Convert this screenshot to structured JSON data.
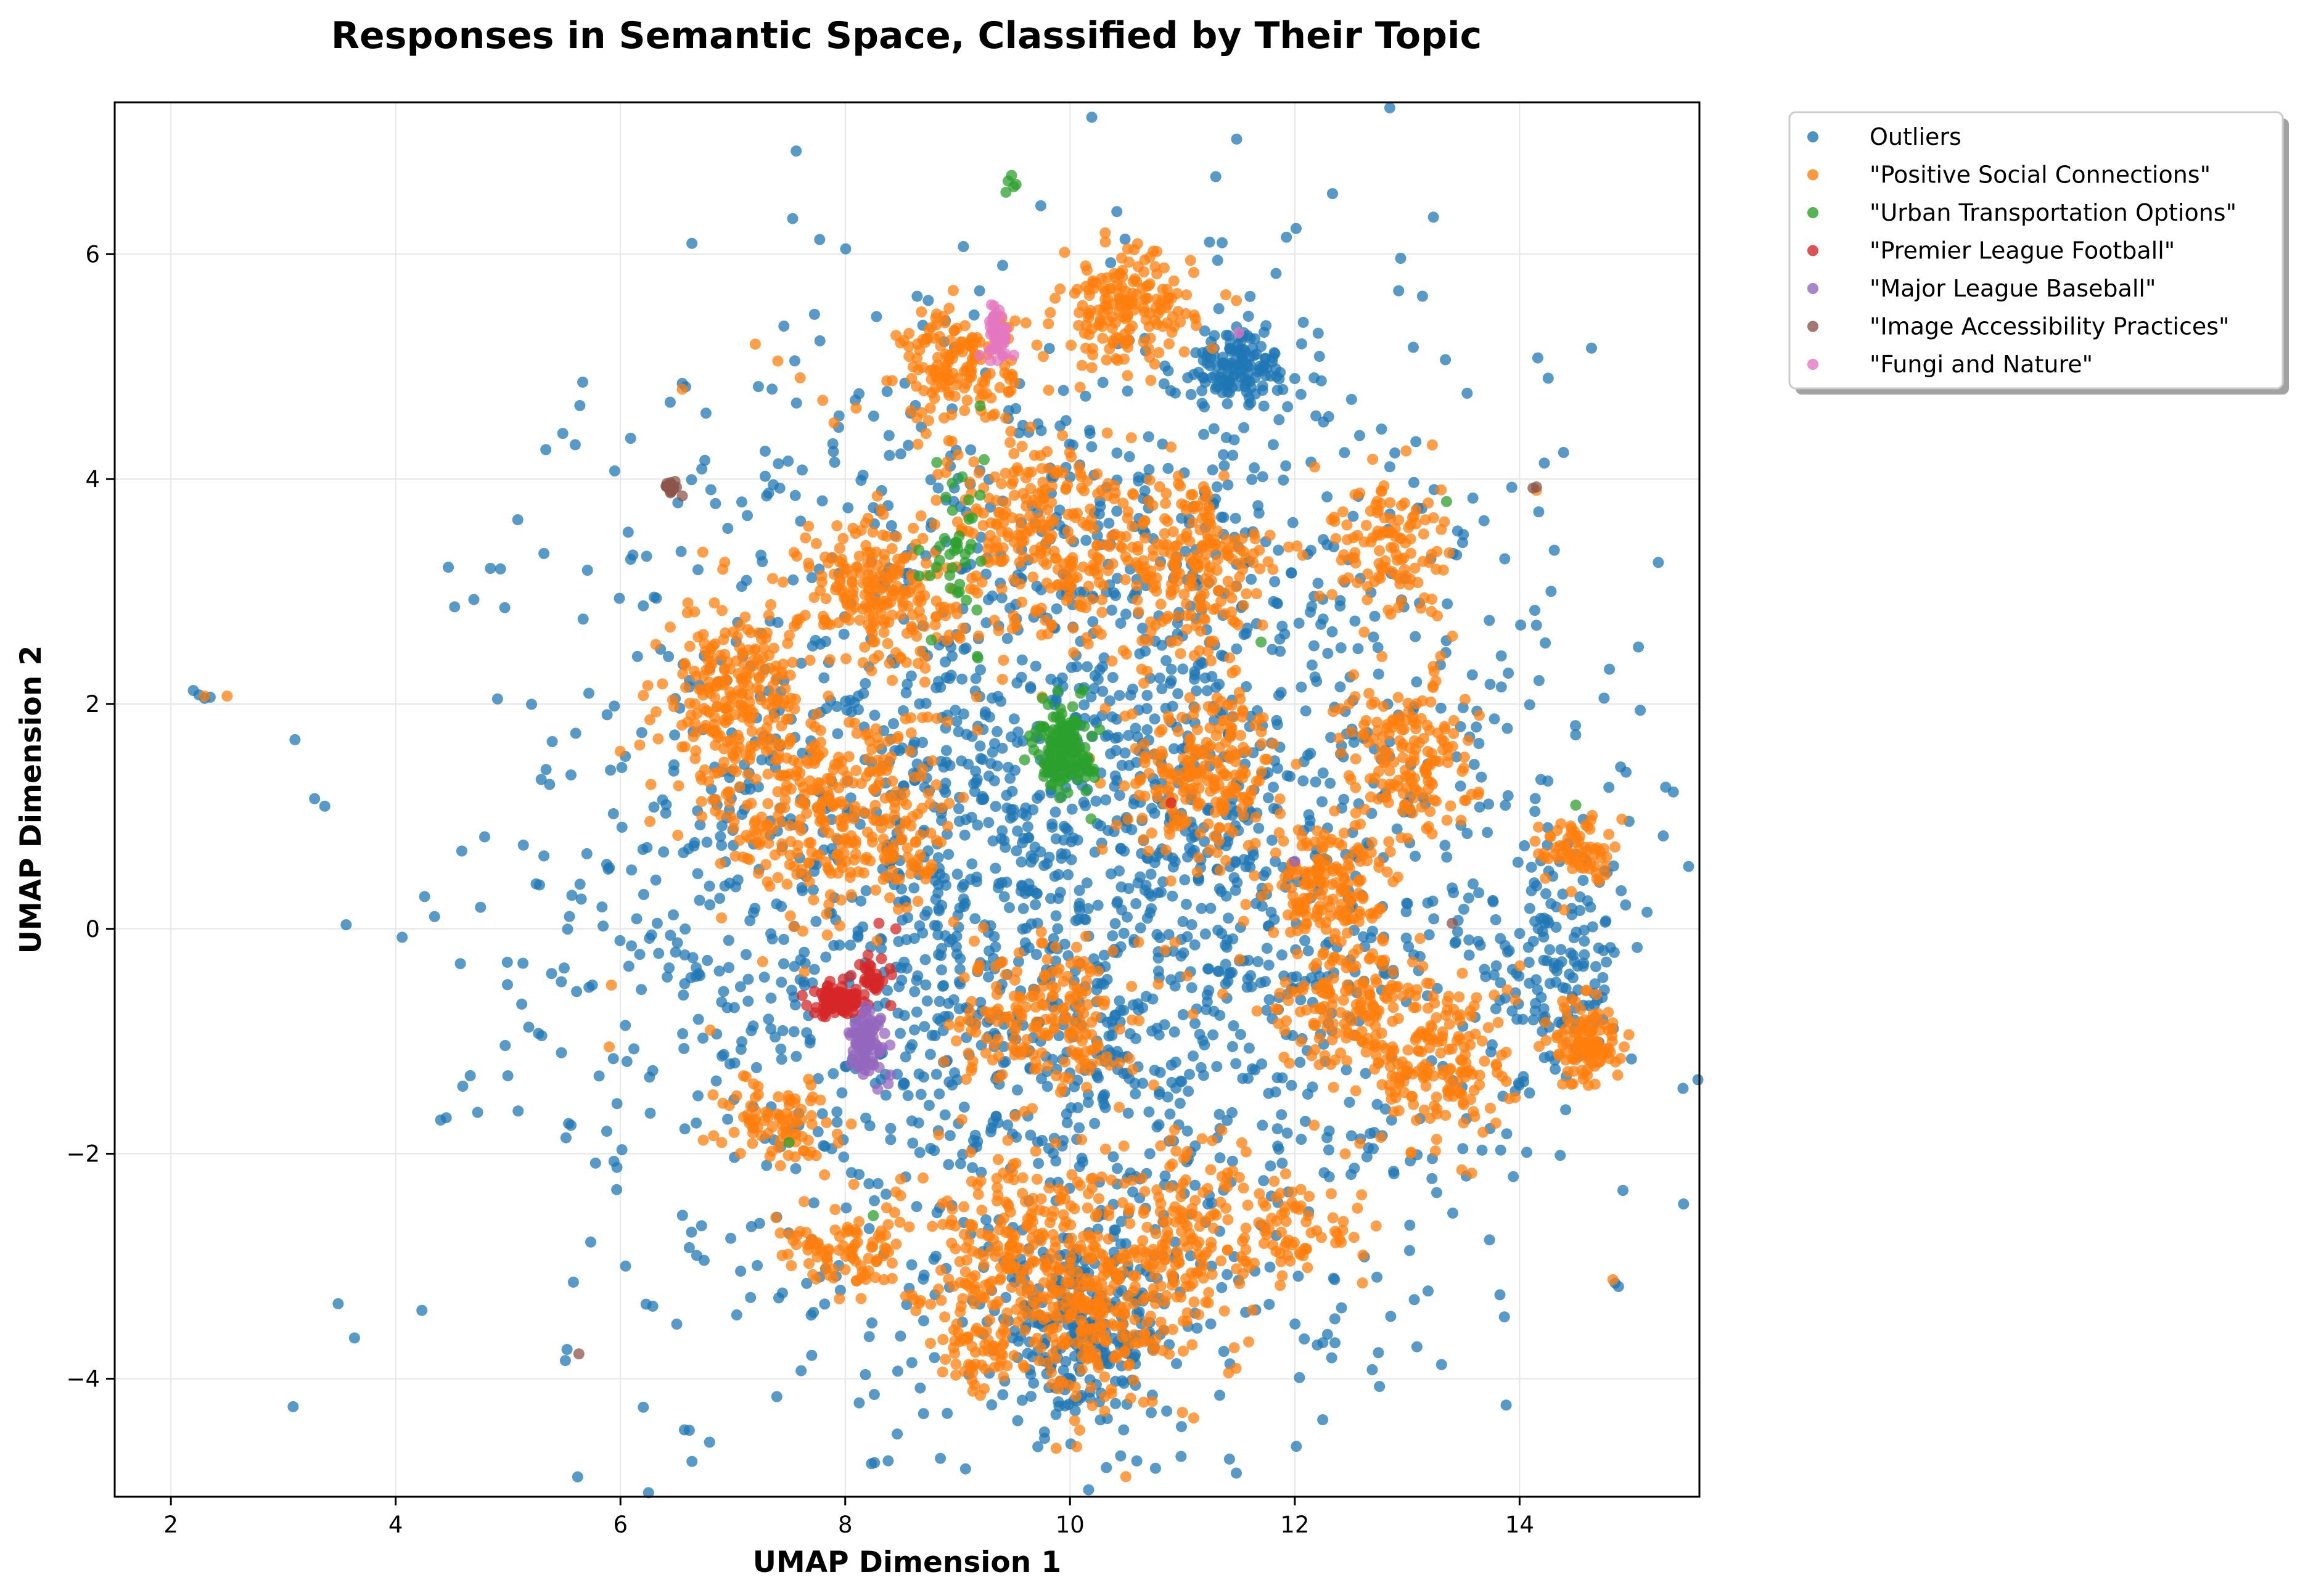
{
  "chart_data": {
    "type": "scatter",
    "title": "Responses in Semantic Space, Classified by Their Topic",
    "xlabel": "UMAP Dimension 1",
    "ylabel": "UMAP Dimension 2",
    "xlim": [
      1.5,
      15.6
    ],
    "ylim": [
      -5.05,
      7.35
    ],
    "xticks": [
      2,
      4,
      6,
      8,
      10,
      12,
      14
    ],
    "yticks": [
      -4,
      -2,
      0,
      2,
      4,
      6
    ],
    "xtick_labels": [
      "2",
      "4",
      "6",
      "8",
      "10",
      "12",
      "14"
    ],
    "ytick_labels": [
      "−4",
      "−2",
      "0",
      "2",
      "4",
      "6"
    ],
    "grid": true,
    "legend_placement": "outside-top-right",
    "series": [
      {
        "name": "Outliers",
        "color": "#1f77b4",
        "clusters": [
          {
            "cx": 10.0,
            "cy": 0.6,
            "rx": 4.3,
            "ry": 4.6,
            "count": 2600
          },
          {
            "cx": 11.5,
            "cy": 5.0,
            "rx": 0.6,
            "ry": 0.35,
            "count": 140
          },
          {
            "cx": 10.1,
            "cy": -3.6,
            "rx": 0.8,
            "ry": 0.7,
            "count": 260
          },
          {
            "cx": 14.3,
            "cy": -0.3,
            "rx": 0.6,
            "ry": 1.0,
            "count": 140
          }
        ],
        "points": [
          [
            2.2,
            2.12
          ],
          [
            2.25,
            2.08
          ],
          [
            2.3,
            2.05
          ],
          [
            2.35,
            2.06
          ],
          [
            5.25,
            0.4
          ],
          [
            5.28,
            0.39
          ],
          [
            5.75,
            -0.5
          ],
          [
            5.72,
            -0.52
          ],
          [
            5.3,
            -0.95
          ],
          [
            5.27,
            -0.93
          ],
          [
            4.4,
            -1.7
          ],
          [
            4.45,
            -1.68
          ],
          [
            6.3,
            2.95
          ],
          [
            6.32,
            2.94
          ],
          [
            6.55,
            4.85
          ],
          [
            6.58,
            4.82
          ],
          [
            6.9,
            -0.65
          ],
          [
            6.95,
            -0.7
          ],
          [
            14.85,
            -3.15
          ],
          [
            14.88,
            -3.18
          ],
          [
            12.2,
            -3.7
          ],
          [
            12.25,
            -3.68
          ],
          [
            14.15,
            2.7
          ],
          [
            7.3,
            3.85
          ]
        ]
      },
      {
        "name": "\"Positive Social Connections\"",
        "color": "#ff7f0e",
        "clusters": [
          {
            "cx": 7.0,
            "cy": 2.0,
            "rx": 0.6,
            "ry": 0.9,
            "count": 260
          },
          {
            "cx": 8.3,
            "cy": 3.0,
            "rx": 0.7,
            "ry": 0.7,
            "count": 220
          },
          {
            "cx": 9.0,
            "cy": 5.0,
            "rx": 0.5,
            "ry": 0.5,
            "count": 150
          },
          {
            "cx": 10.5,
            "cy": 5.5,
            "rx": 0.6,
            "ry": 0.5,
            "count": 180
          },
          {
            "cx": 11.1,
            "cy": 3.2,
            "rx": 0.7,
            "ry": 0.8,
            "count": 200
          },
          {
            "cx": 11.2,
            "cy": 1.4,
            "rx": 0.7,
            "ry": 0.7,
            "count": 220
          },
          {
            "cx": 12.3,
            "cy": 0.4,
            "rx": 0.5,
            "ry": 0.5,
            "count": 150
          },
          {
            "cx": 13.0,
            "cy": 1.5,
            "rx": 0.6,
            "ry": 0.8,
            "count": 170
          },
          {
            "cx": 12.8,
            "cy": 3.4,
            "rx": 0.5,
            "ry": 0.7,
            "count": 120
          },
          {
            "cx": 13.3,
            "cy": -1.2,
            "rx": 0.7,
            "ry": 0.8,
            "count": 180
          },
          {
            "cx": 14.6,
            "cy": -1.0,
            "rx": 0.3,
            "ry": 0.4,
            "count": 120
          },
          {
            "cx": 14.5,
            "cy": 0.7,
            "rx": 0.3,
            "ry": 0.3,
            "count": 70
          },
          {
            "cx": 9.5,
            "cy": -2.8,
            "rx": 1.0,
            "ry": 0.8,
            "count": 260
          },
          {
            "cx": 10.2,
            "cy": -3.5,
            "rx": 0.6,
            "ry": 0.8,
            "count": 180
          },
          {
            "cx": 11.0,
            "cy": -2.8,
            "rx": 0.8,
            "ry": 1.0,
            "count": 180
          },
          {
            "cx": 8.0,
            "cy": 1.0,
            "rx": 1.0,
            "ry": 1.0,
            "count": 320
          },
          {
            "cx": 9.8,
            "cy": 3.5,
            "rx": 0.9,
            "ry": 1.0,
            "count": 280
          },
          {
            "cx": 7.4,
            "cy": -1.7,
            "rx": 0.5,
            "ry": 0.4,
            "count": 90
          },
          {
            "cx": 8.0,
            "cy": -2.9,
            "rx": 0.6,
            "ry": 0.3,
            "count": 90
          },
          {
            "cx": 9.2,
            "cy": -3.8,
            "rx": 0.4,
            "ry": 0.3,
            "count": 60
          },
          {
            "cx": 12.0,
            "cy": -2.7,
            "rx": 0.6,
            "ry": 0.5,
            "count": 70
          },
          {
            "cx": 9.8,
            "cy": -0.8,
            "rx": 0.8,
            "ry": 0.7,
            "count": 200
          },
          {
            "cx": 12.5,
            "cy": -0.6,
            "rx": 0.7,
            "ry": 0.7,
            "count": 160
          }
        ],
        "points": [
          [
            2.3,
            2.07
          ],
          [
            2.5,
            2.07
          ],
          [
            7.2,
            5.2
          ],
          [
            7.4,
            5.05
          ],
          [
            7.6,
            4.9
          ],
          [
            7.8,
            4.7
          ],
          [
            7.9,
            4.5
          ],
          [
            6.55,
            4.8
          ],
          [
            5.9,
            -1.05
          ],
          [
            5.92,
            -0.5
          ],
          [
            6.8,
            -0.9
          ],
          [
            14.15,
            3.9
          ],
          [
            14.83,
            -3.12
          ],
          [
            11.1,
            -4.35
          ],
          [
            11.0,
            -4.3
          ]
        ]
      },
      {
        "name": "\"Urban Transportation Options\"",
        "color": "#2ca02c",
        "clusters": [
          {
            "cx": 9.95,
            "cy": 1.6,
            "rx": 0.25,
            "ry": 0.4,
            "count": 150
          },
          {
            "cx": 9.0,
            "cy": 3.3,
            "rx": 0.3,
            "ry": 0.8,
            "count": 40
          }
        ],
        "points": [
          [
            9.45,
            6.65
          ],
          [
            9.48,
            6.7
          ],
          [
            9.5,
            6.6
          ],
          [
            9.43,
            6.55
          ],
          [
            9.52,
            6.62
          ],
          [
            7.5,
            -1.9
          ],
          [
            8.25,
            -2.55
          ],
          [
            13.35,
            3.8
          ],
          [
            14.5,
            1.1
          ],
          [
            9.2,
            4.65
          ],
          [
            11.7,
            2.55
          ]
        ]
      },
      {
        "name": "\"Premier League Football\"",
        "color": "#d62728",
        "clusters": [
          {
            "cx": 7.95,
            "cy": -0.62,
            "rx": 0.25,
            "ry": 0.15,
            "count": 90
          },
          {
            "cx": 8.25,
            "cy": -0.45,
            "rx": 0.15,
            "ry": 0.2,
            "count": 30
          }
        ],
        "points": [
          [
            10.9,
            1.12
          ],
          [
            8.3,
            0.05
          ],
          [
            8.45,
            0.0
          ]
        ]
      },
      {
        "name": "\"Major League Baseball\"",
        "color": "#9467bd",
        "clusters": [
          {
            "cx": 8.2,
            "cy": -1.0,
            "rx": 0.15,
            "ry": 0.3,
            "count": 90
          }
        ],
        "points": [
          [
            8.4,
            -1.3
          ],
          [
            8.05,
            -1.2
          ],
          [
            12.0,
            0.6
          ]
        ]
      },
      {
        "name": "\"Image Accessibility Practices\"",
        "color": "#8c564b",
        "clusters": [
          {
            "cx": 6.45,
            "cy": 3.92,
            "rx": 0.08,
            "ry": 0.05,
            "count": 25
          }
        ],
        "points": [
          [
            5.63,
            -3.78
          ],
          [
            14.15,
            3.93
          ],
          [
            14.12,
            3.92
          ],
          [
            6.55,
            3.85
          ],
          [
            13.4,
            0.05
          ]
        ]
      },
      {
        "name": "\"Fungi and Nature\"",
        "color": "#e377c2",
        "clusters": [
          {
            "cx": 9.35,
            "cy": 5.3,
            "rx": 0.1,
            "ry": 0.25,
            "count": 45
          }
        ],
        "points": [
          [
            9.3,
            5.55
          ],
          [
            9.5,
            5.1
          ],
          [
            11.5,
            5.3
          ]
        ]
      }
    ]
  }
}
